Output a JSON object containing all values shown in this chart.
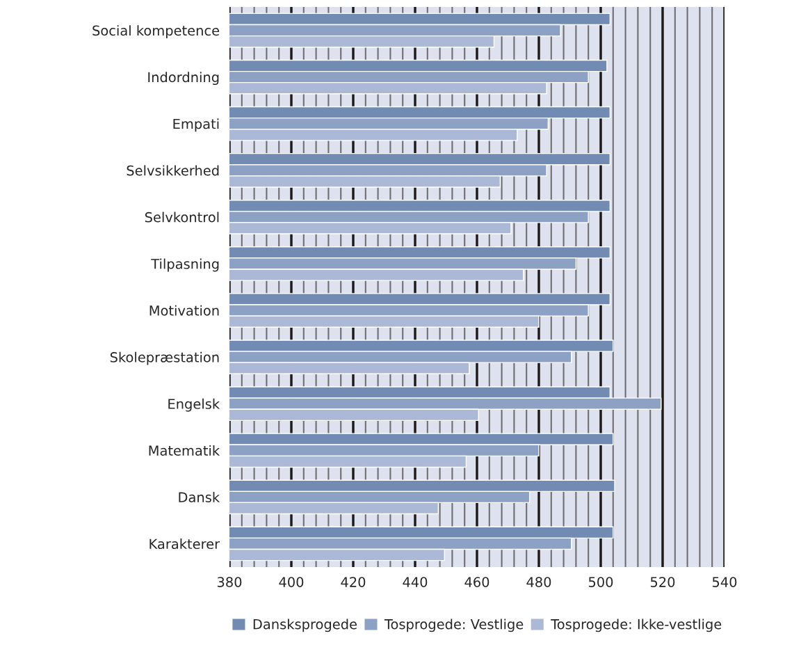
{
  "chart_data": {
    "type": "bar",
    "orientation": "horizontal",
    "categories": [
      "Social kompetence",
      "Indordning",
      "Empati",
      "Selvsikkerhed",
      "Selvkontrol",
      "Tilpasning",
      "Motivation",
      "Skolepræstation",
      "Engelsk",
      "Matematik",
      "Dansk",
      "Karakterer"
    ],
    "series": [
      {
        "name": "Dansksprogede",
        "color": "#728bb2",
        "values": [
          503,
          502,
          503,
          503,
          503,
          503,
          503,
          504,
          503,
          504,
          504.5,
          504
        ]
      },
      {
        "name": "Tosprogede: Vestlige",
        "color": "#8ca1c4",
        "values": [
          487,
          496,
          483,
          482.5,
          496,
          492,
          496,
          490.5,
          519.5,
          480,
          477,
          490.5
        ]
      },
      {
        "name": "Tosprogede: Ikke-vestlige",
        "color": "#acb9d6",
        "values": [
          465.5,
          482.5,
          473,
          467.5,
          471,
          475,
          480,
          457.5,
          460.5,
          456.5,
          447.5,
          449.5
        ]
      }
    ],
    "xlim": [
      380,
      540
    ],
    "xticks": [
      380,
      {
        "value": 384,
        "label": null
      },
      {
        "value": 388,
        "label": null
      },
      {
        "value": 392,
        "label": null
      },
      {
        "value": 396,
        "label": null
      },
      400,
      {
        "value": 404,
        "label": null
      },
      {
        "value": 408,
        "label": null
      },
      {
        "value": 412,
        "label": null
      },
      {
        "value": 416,
        "label": null
      },
      420,
      {
        "value": 424,
        "label": null
      },
      {
        "value": 428,
        "label": null
      },
      {
        "value": 432,
        "label": null
      },
      {
        "value": 436,
        "label": null
      },
      440,
      {
        "value": 444,
        "label": null
      },
      {
        "value": 448,
        "label": null
      },
      {
        "value": 452,
        "label": null
      },
      {
        "value": 456,
        "label": null
      },
      460,
      {
        "value": 464,
        "label": null
      },
      {
        "value": 468,
        "label": null
      },
      {
        "value": 472,
        "label": null
      },
      {
        "value": 476,
        "label": null
      },
      480,
      {
        "value": 484,
        "label": null
      },
      {
        "value": 488,
        "label": null
      },
      {
        "value": 492,
        "label": null
      },
      {
        "value": 496,
        "label": null
      },
      500,
      {
        "value": 504,
        "label": null
      },
      {
        "value": 508,
        "label": null
      },
      {
        "value": 512,
        "label": null
      },
      {
        "value": 516,
        "label": null
      },
      520,
      {
        "value": 524,
        "label": null
      },
      {
        "value": 528,
        "label": null
      },
      {
        "value": 532,
        "label": null
      },
      {
        "value": 536,
        "label": null
      },
      540
    ],
    "grid": "x",
    "legend": "bottom"
  }
}
